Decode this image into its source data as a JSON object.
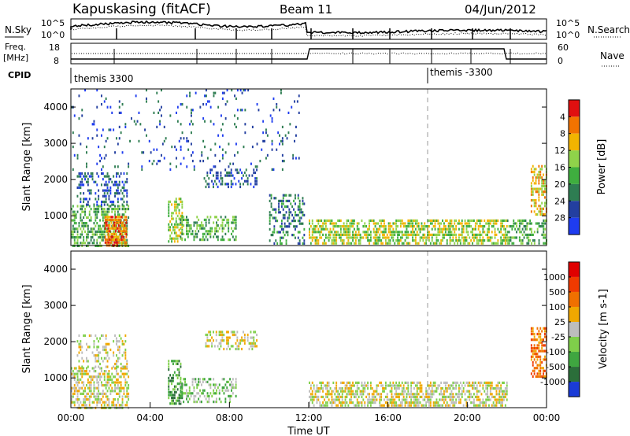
{
  "header": {
    "station": "Kapuskasing (fitACF)",
    "beam": "Beam 11",
    "date": "04/Jun/2012"
  },
  "top_panels": {
    "noise": {
      "left_label": "N.Sky",
      "right_label": "N.Search",
      "left_ticks": [
        "10^5",
        "10^0"
      ],
      "right_ticks": [
        "10^5",
        "10^0"
      ]
    },
    "freq": {
      "left_label": "Freq.",
      "left_unit": "[MHz]",
      "right_label": "Nave",
      "left_ticks": [
        "18",
        "8"
      ],
      "right_ticks": [
        "60",
        "0"
      ]
    },
    "cpid": {
      "label": "CPID",
      "segments": [
        {
          "name": "themis 3300",
          "start_hour": 0
        },
        {
          "name": "themis -3300",
          "start_hour": 18
        }
      ]
    }
  },
  "chart_data": [
    {
      "type": "heatmap",
      "name": "power",
      "ylabel": "Slant Range [km]",
      "yticks": [
        "1000",
        "2000",
        "3000",
        "4000"
      ],
      "ylim": [
        180,
        4500
      ],
      "xlim": [
        0,
        24
      ],
      "colorbar": {
        "label": "Power [dB]",
        "ticks": [
          "4",
          "8",
          "12",
          "16",
          "20",
          "24",
          "28"
        ],
        "colors": [
          "#1e3cf0",
          "#233fa0",
          "#2e7d52",
          "#3fae3f",
          "#8fd24a",
          "#f2b400",
          "#f27300",
          "#e01010"
        ]
      },
      "regions": [
        {
          "x": [
            0.0,
            2.9
          ],
          "y": [
            200,
            1300
          ],
          "density": 0.55,
          "level": 3
        },
        {
          "x": [
            1.7,
            2.8
          ],
          "y": [
            200,
            1000
          ],
          "density": 0.75,
          "level": 6
        },
        {
          "x": [
            0.3,
            2.8
          ],
          "y": [
            1300,
            2200
          ],
          "density": 0.35,
          "level": 1
        },
        {
          "x": [
            4.9,
            5.6
          ],
          "y": [
            300,
            1500
          ],
          "density": 0.55,
          "level": 4
        },
        {
          "x": [
            5.5,
            8.3
          ],
          "y": [
            300,
            1000
          ],
          "density": 0.45,
          "level": 3
        },
        {
          "x": [
            6.7,
            9.4
          ],
          "y": [
            1800,
            2300
          ],
          "density": 0.4,
          "level": 1
        },
        {
          "x": [
            10.0,
            11.8
          ],
          "y": [
            200,
            1600
          ],
          "density": 0.35,
          "level": 2
        },
        {
          "x": [
            12.0,
            22.0
          ],
          "y": [
            200,
            900
          ],
          "density": 0.6,
          "level": 4
        },
        {
          "x": [
            22.0,
            24.0
          ],
          "y": [
            200,
            900
          ],
          "density": 0.45,
          "level": 3
        },
        {
          "x": [
            23.2,
            24.0
          ],
          "y": [
            1000,
            2400
          ],
          "density": 0.6,
          "level": 5
        },
        {
          "x": [
            0.0,
            11.5
          ],
          "y": [
            2300,
            4500
          ],
          "density": 0.06,
          "level": 1
        }
      ]
    },
    {
      "type": "heatmap",
      "name": "velocity",
      "ylabel": "Slant Range [km]",
      "yticks": [
        "1000",
        "2000",
        "3000",
        "4000"
      ],
      "ylim": [
        180,
        4500
      ],
      "xlim": [
        0,
        24
      ],
      "xticks": [
        "00:00",
        "04:00",
        "08:00",
        "12:00",
        "16:00",
        "20:00",
        "00:00"
      ],
      "xlabel": "Time UT",
      "colorbar": {
        "label": "Velocity [m s-1]",
        "ticks": [
          "1000",
          "500",
          "100",
          "25",
          "-25",
          "-100",
          "-500",
          "-1000"
        ],
        "colors": [
          "#1a3bd6",
          "#2b6e3a",
          "#3fa640",
          "#7fcf4a",
          "#bdbdbd",
          "#f0a800",
          "#f07000",
          "#f03a00",
          "#e00000"
        ]
      },
      "regions": [
        {
          "x": [
            0.0,
            2.9
          ],
          "y": [
            200,
            1300
          ],
          "density": 0.55,
          "level": 4
        },
        {
          "x": [
            0.3,
            2.8
          ],
          "y": [
            1300,
            2200
          ],
          "density": 0.3,
          "level": 4
        },
        {
          "x": [
            4.9,
            5.6
          ],
          "y": [
            300,
            1500
          ],
          "density": 0.55,
          "level": 2
        },
        {
          "x": [
            5.5,
            8.3
          ],
          "y": [
            300,
            1000
          ],
          "density": 0.45,
          "level": 3
        },
        {
          "x": [
            6.7,
            9.4
          ],
          "y": [
            1800,
            2300
          ],
          "density": 0.4,
          "level": 4
        },
        {
          "x": [
            12.0,
            22.0
          ],
          "y": [
            200,
            900
          ],
          "density": 0.6,
          "level": 4
        },
        {
          "x": [
            23.2,
            24.0
          ],
          "y": [
            1000,
            2400
          ],
          "density": 0.6,
          "level": 6
        }
      ]
    }
  ]
}
